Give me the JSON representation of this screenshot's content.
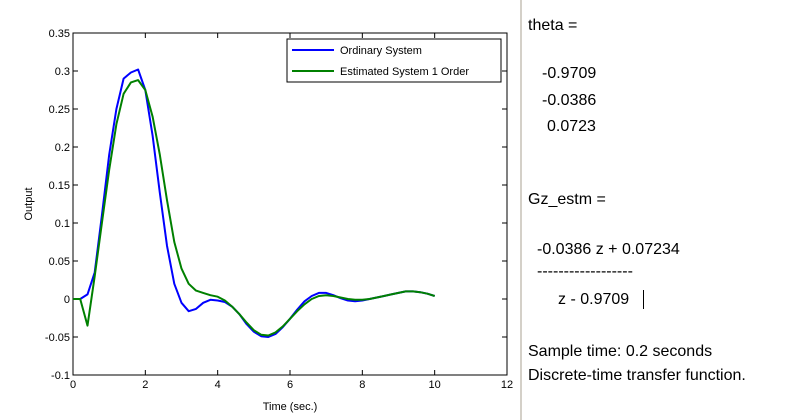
{
  "chart_data": {
    "type": "line",
    "xlabel": "Time (sec.)",
    "ylabel": "Output",
    "xlim": [
      0,
      12
    ],
    "ylim": [
      -0.1,
      0.35
    ],
    "xticks": [
      0,
      2,
      4,
      6,
      8,
      10,
      12
    ],
    "yticks": [
      -0.1,
      -0.05,
      0,
      0.05,
      0.1,
      0.15,
      0.2,
      0.25,
      0.3,
      0.35
    ],
    "xtick_labels": [
      "0",
      "2",
      "4",
      "6",
      "8",
      "10",
      "12"
    ],
    "ytick_labels": [
      "-0.1",
      "-0.05",
      "0",
      "0.05",
      "0.1",
      "0.15",
      "0.2",
      "0.25",
      "0.3",
      "0.35"
    ],
    "grid": false,
    "legend_position": "top-right",
    "series": [
      {
        "name": "Ordinary System",
        "color": "#0000ff",
        "x": [
          0,
          0.2,
          0.4,
          0.6,
          0.8,
          1.0,
          1.2,
          1.4,
          1.6,
          1.8,
          2.0,
          2.2,
          2.4,
          2.6,
          2.8,
          3.0,
          3.2,
          3.4,
          3.6,
          3.8,
          4.0,
          4.2,
          4.4,
          4.6,
          4.8,
          5.0,
          5.2,
          5.4,
          5.6,
          5.8,
          6.0,
          6.2,
          6.4,
          6.6,
          6.8,
          7.0,
          7.2,
          7.4,
          7.6,
          7.8,
          8.0,
          8.2,
          8.4,
          8.6,
          8.8,
          9.0,
          9.2,
          9.4,
          9.6,
          9.8,
          10.0
        ],
        "y": [
          0,
          0,
          0.006,
          0.035,
          0.11,
          0.19,
          0.25,
          0.29,
          0.298,
          0.302,
          0.275,
          0.215,
          0.14,
          0.07,
          0.02,
          -0.005,
          -0.016,
          -0.013,
          -0.005,
          -0.001,
          -0.002,
          -0.004,
          -0.01,
          -0.02,
          -0.033,
          -0.043,
          -0.049,
          -0.05,
          -0.046,
          -0.037,
          -0.026,
          -0.014,
          -0.003,
          0.004,
          0.008,
          0.008,
          0.005,
          0.001,
          -0.002,
          -0.003,
          -0.002,
          0,
          0.002,
          0.004,
          0.006,
          0.008,
          0.01,
          0.01,
          0.009,
          0.007,
          0.004
        ]
      },
      {
        "name": "Estimated System 1 Order",
        "color": "#008000",
        "x": [
          0,
          0.2,
          0.4,
          0.6,
          0.8,
          1.0,
          1.2,
          1.4,
          1.6,
          1.8,
          2.0,
          2.2,
          2.4,
          2.6,
          2.8,
          3.0,
          3.2,
          3.4,
          3.6,
          3.8,
          4.0,
          4.2,
          4.4,
          4.6,
          4.8,
          5.0,
          5.2,
          5.4,
          5.6,
          5.8,
          6.0,
          6.2,
          6.4,
          6.6,
          6.8,
          7.0,
          7.2,
          7.4,
          7.6,
          7.8,
          8.0,
          8.2,
          8.4,
          8.6,
          8.8,
          9.0,
          9.2,
          9.4,
          9.6,
          9.8,
          10.0
        ],
        "y": [
          0,
          0,
          -0.035,
          0.03,
          0.1,
          0.17,
          0.23,
          0.27,
          0.285,
          0.288,
          0.275,
          0.24,
          0.19,
          0.13,
          0.075,
          0.04,
          0.02,
          0.011,
          0.008,
          0.005,
          0.003,
          -0.002,
          -0.01,
          -0.02,
          -0.031,
          -0.041,
          -0.047,
          -0.048,
          -0.044,
          -0.036,
          -0.026,
          -0.016,
          -0.007,
          0,
          0.004,
          0.005,
          0.004,
          0.002,
          0,
          -0.001,
          -0.001,
          0,
          0.002,
          0.004,
          0.006,
          0.008,
          0.01,
          0.01,
          0.009,
          0.007,
          0.004
        ]
      }
    ]
  },
  "console": {
    "theta_label": "theta =",
    "theta_values": [
      "-0.9709",
      "-0.0386",
      "0.0723"
    ],
    "gz_label": "Gz_estm =",
    "numerator": "-0.0386 z + 0.07234",
    "fraction_bar": "------------------",
    "denominator": "z - 0.9709",
    "sample_time": "Sample time: 0.2 seconds",
    "description": "Discrete-time transfer function."
  }
}
